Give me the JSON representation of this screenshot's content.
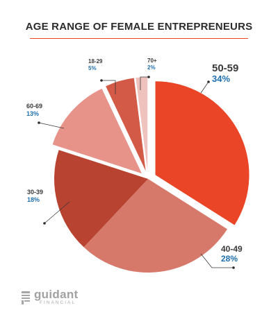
{
  "chart_data": {
    "type": "pie",
    "title": "AGE RANGE OF FEMALE ENTREPRENEURS",
    "categories": [
      "50-59",
      "40-49",
      "30-39",
      "60-69",
      "18-29",
      "70+"
    ],
    "values": [
      34,
      28,
      18,
      13,
      5,
      2
    ],
    "value_labels": [
      "34%",
      "28%",
      "18%",
      "13%",
      "5%",
      "2%"
    ],
    "colors": [
      "#ea4526",
      "#d7796a",
      "#b94331",
      "#e8938a",
      "#d25a46",
      "#efc2bd"
    ],
    "exploded": [
      "50-59",
      "60-69",
      "18-29",
      "70+"
    ],
    "legend": "none"
  },
  "brand": {
    "name": "guidant",
    "sub": "FINANCIAL",
    "color": "#9a9a9a"
  },
  "colors": {
    "name_text": "#3a3a3a",
    "pct_text": "#1f6fae",
    "title_rule": "#e94525"
  }
}
